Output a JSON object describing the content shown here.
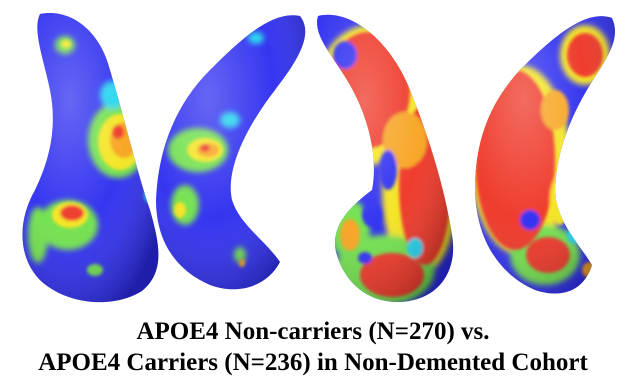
{
  "caption": {
    "line1": "APOE4 Non-carriers (N=270) vs.",
    "line2": "APOE4 Carriers (N=236) in Non-Demented Cohort"
  },
  "colors": {
    "background": "#ffffff",
    "base": "#2b2bf0",
    "cyan": "#1fd3ee",
    "green": "#6ee04a",
    "yellow": "#f4e41c",
    "orange": "#f7a21c",
    "red": "#ee3020"
  },
  "views": [
    {
      "name": "hippocampus-view-1"
    },
    {
      "name": "hippocampus-view-2"
    },
    {
      "name": "hippocampus-view-3"
    },
    {
      "name": "hippocampus-view-4"
    }
  ]
}
